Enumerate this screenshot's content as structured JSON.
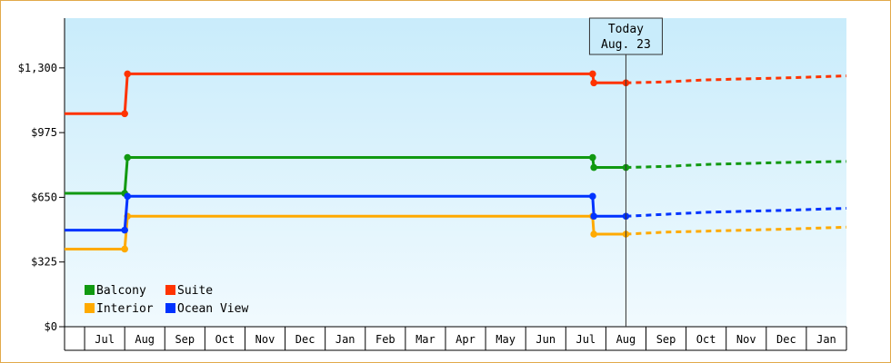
{
  "chart_data": {
    "type": "line",
    "title": "",
    "xlabel": "",
    "ylabel": "",
    "y_ticks": [
      "$0",
      "$325",
      "$650",
      "$975",
      "$1,300"
    ],
    "y_tick_values": [
      0,
      325,
      650,
      975,
      1300
    ],
    "ylim": [
      0,
      1550
    ],
    "x_ticks": [
      "Jul",
      "Aug",
      "Sep",
      "Oct",
      "Nov",
      "Dec",
      "Jan",
      "Feb",
      "Mar",
      "Apr",
      "May",
      "Jun",
      "Jul",
      "Aug",
      "Sep",
      "Oct",
      "Nov",
      "Dec",
      "Jan"
    ],
    "xlim": [
      0,
      19.5
    ],
    "today": {
      "label_line1": "Today",
      "label_line2": "Aug. 23",
      "x": 14.0
    },
    "grid": false,
    "legend": "bottom-left",
    "series": [
      {
        "name": "Balcony",
        "color": "#119911",
        "actual": [
          [
            0,
            670
          ],
          [
            1.5,
            670
          ],
          [
            1.57,
            850
          ],
          [
            13.17,
            850
          ],
          [
            13.2,
            800
          ],
          [
            14.0,
            800
          ]
        ],
        "forecast": [
          [
            14.0,
            800
          ],
          [
            15,
            805
          ],
          [
            16,
            815
          ],
          [
            17,
            820
          ],
          [
            18,
            825
          ],
          [
            19.5,
            830
          ]
        ]
      },
      {
        "name": "Suite",
        "color": "#ff3300",
        "actual": [
          [
            0,
            1070
          ],
          [
            1.5,
            1070
          ],
          [
            1.57,
            1270
          ],
          [
            13.17,
            1270
          ],
          [
            13.2,
            1225
          ],
          [
            14.0,
            1225
          ]
        ],
        "forecast": [
          [
            14.0,
            1225
          ],
          [
            15,
            1230
          ],
          [
            16,
            1240
          ],
          [
            17,
            1245
          ],
          [
            18,
            1250
          ],
          [
            19.5,
            1260
          ]
        ]
      },
      {
        "name": "Interior",
        "color": "#ffaa00",
        "actual": [
          [
            0,
            390
          ],
          [
            1.5,
            390
          ],
          [
            1.57,
            555
          ],
          [
            13.17,
            555
          ],
          [
            13.2,
            465
          ],
          [
            14.0,
            465
          ]
        ],
        "forecast": [
          [
            14.0,
            465
          ],
          [
            15,
            475
          ],
          [
            16,
            480
          ],
          [
            17,
            485
          ],
          [
            18,
            490
          ],
          [
            19.5,
            500
          ]
        ]
      },
      {
        "name": "Ocean View",
        "color": "#0033ff",
        "actual": [
          [
            0,
            485
          ],
          [
            1.5,
            485
          ],
          [
            1.57,
            655
          ],
          [
            13.17,
            655
          ],
          [
            13.2,
            555
          ],
          [
            14.0,
            555
          ]
        ],
        "forecast": [
          [
            14.0,
            555
          ],
          [
            15,
            565
          ],
          [
            16,
            575
          ],
          [
            17,
            580
          ],
          [
            18,
            585
          ],
          [
            19.5,
            595
          ]
        ]
      }
    ]
  }
}
